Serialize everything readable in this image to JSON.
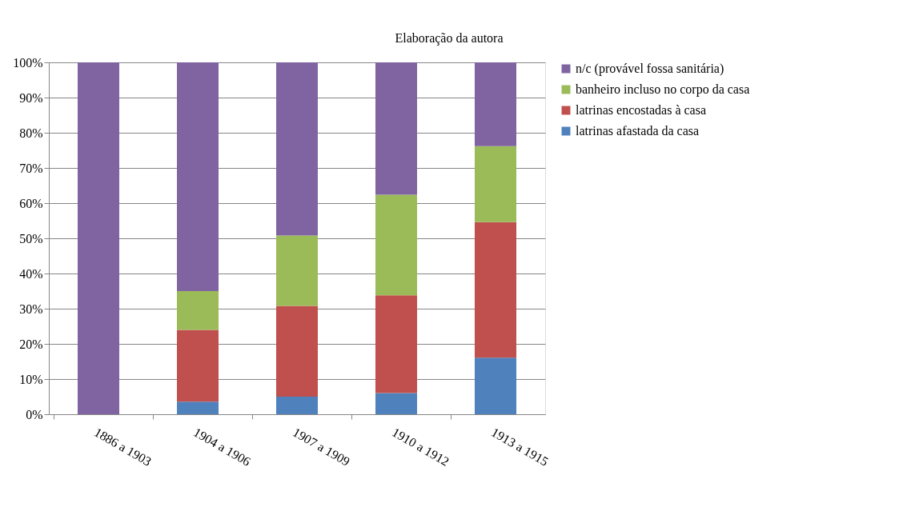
{
  "chart_data": {
    "type": "bar",
    "stacked": true,
    "annotations": [
      "Elaboração da autora"
    ],
    "categories": [
      "1886 a 1903",
      "1904 a 1906",
      "1907 a 1909",
      "1910 a 1912",
      "1913 a 1915"
    ],
    "series": [
      {
        "name": "latrinas afastada da casa",
        "color": "#4f81bd",
        "values": [
          0,
          3.6,
          5.0,
          6.0,
          16.1
        ]
      },
      {
        "name": "latrinas encostadas à casa",
        "color": "#c0504d",
        "values": [
          0,
          20.4,
          25.8,
          27.8,
          38.5
        ]
      },
      {
        "name": "banheiro incluso no corpo da casa",
        "color": "#9bbb59",
        "values": [
          0,
          11.0,
          20.0,
          28.6,
          21.6
        ]
      },
      {
        "name": "n/c (provável fossa sanitária)",
        "color": "#8064a2",
        "values": [
          100,
          65.0,
          49.2,
          37.6,
          23.8
        ]
      }
    ],
    "ylim": [
      0,
      100
    ],
    "yticks": [
      {
        "value": 0,
        "label": "0%"
      },
      {
        "value": 10,
        "label": "10%"
      },
      {
        "value": 20,
        "label": "20%"
      },
      {
        "value": 30,
        "label": "30%"
      },
      {
        "value": 40,
        "label": "40%"
      },
      {
        "value": 50,
        "label": "50%"
      },
      {
        "value": 60,
        "label": "60%"
      },
      {
        "value": 70,
        "label": "70%"
      },
      {
        "value": 80,
        "label": "80%"
      },
      {
        "value": 90,
        "label": "90%"
      },
      {
        "value": 100,
        "label": "100%"
      }
    ],
    "grid": "y",
    "legend": "right"
  }
}
